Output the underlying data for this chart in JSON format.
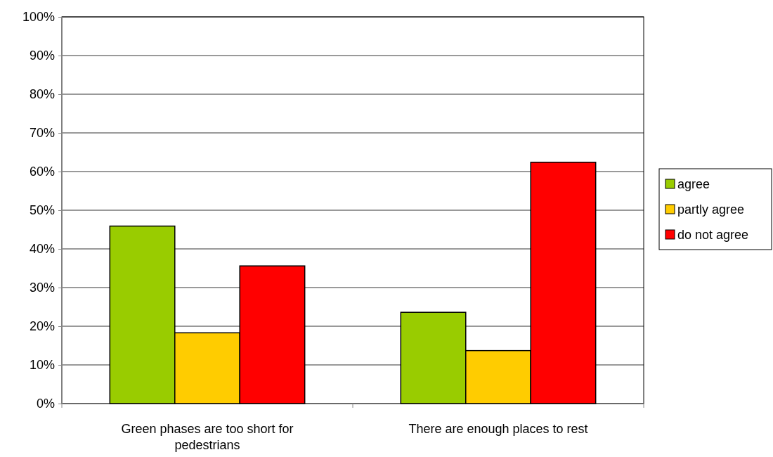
{
  "chart_data": {
    "type": "bar",
    "categories": [
      "Green phases are too short for pedestrians",
      "There are enough places to rest"
    ],
    "series": [
      {
        "name": "agree",
        "color": "#99cc00",
        "values": [
          45.9,
          23.6
        ]
      },
      {
        "name": "partly agree",
        "color": "#ffcc00",
        "values": [
          18.3,
          13.7
        ]
      },
      {
        "name": "do not agree",
        "color": "#ff0000",
        "values": [
          35.6,
          62.4
        ]
      }
    ],
    "ylim": [
      0,
      100
    ],
    "yticks": [
      {
        "value": 0,
        "label": "0%"
      },
      {
        "value": 10,
        "label": "10%"
      },
      {
        "value": 20,
        "label": "20%"
      },
      {
        "value": 30,
        "label": "30%"
      },
      {
        "value": 40,
        "label": "40%"
      },
      {
        "value": 50,
        "label": "50%"
      },
      {
        "value": 60,
        "label": "60%"
      },
      {
        "value": 70,
        "label": "70%"
      },
      {
        "value": 80,
        "label": "80%"
      },
      {
        "value": 90,
        "label": "90%"
      },
      {
        "value": 100,
        "label": "100%"
      }
    ],
    "grid": "y",
    "legend": "right"
  }
}
